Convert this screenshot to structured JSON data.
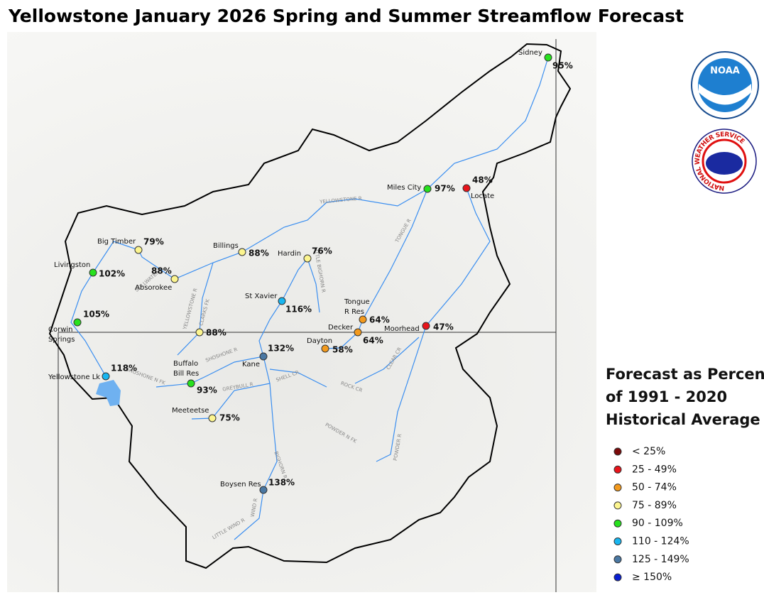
{
  "title": "Yellowstone January 2026 Spring and Summer Streamflow Forecast",
  "logos": {
    "noaa": "NOAA",
    "nws": "NATIONAL WEATHER SERVICE"
  },
  "stations": [
    {
      "name": [
        "Sidney"
      ],
      "percent": "95%",
      "color": "#27e11e"
    },
    {
      "name": [
        "Miles City"
      ],
      "percent": "97%",
      "color": "#27e11e"
    },
    {
      "name": [
        "Locate"
      ],
      "percent": "48%",
      "color": "#e8141b"
    },
    {
      "name": [
        "Big Timber"
      ],
      "percent": "79%",
      "color": "#fcf58f"
    },
    {
      "name": [
        "Livingston"
      ],
      "percent": "102%",
      "color": "#27e11e"
    },
    {
      "name": [
        "Absorokee"
      ],
      "percent": "88%",
      "color": "#fcf58f"
    },
    {
      "name": [
        "Billings"
      ],
      "percent": "88%",
      "color": "#fcf58f"
    },
    {
      "name": [
        "Hardin"
      ],
      "percent": "76%",
      "color": "#fcf58f"
    },
    {
      "name": [
        "St Xavier"
      ],
      "percent": "116%",
      "color": "#18b6f0"
    },
    {
      "name": [
        "Tongue",
        "R Res"
      ],
      "percent": "64%",
      "color": "#f39a1d"
    },
    {
      "name": [
        "Decker"
      ],
      "percent": "64%",
      "color": "#f39a1d"
    },
    {
      "name": [
        "Moorhead"
      ],
      "percent": "47%",
      "color": "#e8141b"
    },
    {
      "name": [
        "Corwin",
        "Springs"
      ],
      "percent": "105%",
      "color": "#27e11e"
    },
    {
      "name": [
        "Dayton"
      ],
      "percent": "58%",
      "color": "#f39a1d"
    },
    {
      "percent": "88%",
      "color": "#fcf58f"
    },
    {
      "name": [
        "Kane"
      ],
      "percent": "132%",
      "color": "#4a78a3"
    },
    {
      "name": [
        "Yellowstone Lk"
      ],
      "percent": "118%",
      "color": "#18b6f0"
    },
    {
      "name": [
        "Buffalo",
        "Bill Res"
      ],
      "percent": "93%",
      "color": "#27e11e"
    },
    {
      "name": [
        "Meeteetse"
      ],
      "percent": "75%",
      "color": "#fcf58f"
    },
    {
      "name": [
        "Boysen Res"
      ],
      "percent": "138%",
      "color": "#4a78a3"
    }
  ],
  "rivers": [
    "YELLOWSTONE R",
    "TONGUE R",
    "LITTLE BIGHORN R",
    "STILLWATER R",
    "YELLOWSTONE R",
    "CLARKS FK",
    "SHOSHONE R",
    "SHOSHONE N FK",
    "GREYBULL R",
    "SHELL CR",
    "ROCK CR",
    "CLEAR CR",
    "POWDER N FK",
    "POWDER R",
    "BIGHORN R",
    "WIND R",
    "LITTLE WIND R"
  ],
  "legend": {
    "title": [
      "Forecast as Percent",
      "of 1991 - 2020",
      "Historical Average"
    ],
    "items": [
      {
        "label": "< 25%",
        "color": "#7b0a0a"
      },
      {
        "label": "25 - 49%",
        "color": "#e8141b"
      },
      {
        "label": "50 - 74%",
        "color": "#f39a1d"
      },
      {
        "label": "75 - 89%",
        "color": "#fcf58f"
      },
      {
        "label": "90 - 109%",
        "color": "#27e11e"
      },
      {
        "label": "110 - 124%",
        "color": "#18b6f0"
      },
      {
        "label": "125 - 149%",
        "color": "#4a78a3"
      },
      {
        "label": "≥ 150%",
        "color": "#0a1fd1"
      }
    ]
  }
}
